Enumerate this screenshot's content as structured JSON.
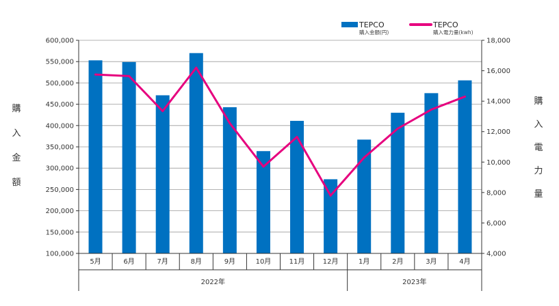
{
  "chart_data": {
    "type": "bar+line",
    "categories": [
      "5月",
      "6月",
      "7月",
      "8月",
      "9月",
      "10月",
      "11月",
      "12月",
      "1月",
      "2月",
      "3月",
      "4月"
    ],
    "year_groups": [
      {
        "label": "2022年",
        "count": 8
      },
      {
        "label": "2023年",
        "count": 4
      }
    ],
    "series": [
      {
        "name": "TEPCO",
        "sublabel": "購入金額(円)",
        "kind": "bar",
        "axis": "left",
        "values": [
          553000,
          549000,
          471000,
          570000,
          443000,
          340000,
          411000,
          274000,
          367000,
          430000,
          476000,
          506000
        ]
      },
      {
        "name": "TEPCO",
        "sublabel": "購入電力量(kwh)",
        "kind": "line",
        "axis": "right",
        "values": [
          15750,
          15650,
          13350,
          16200,
          12550,
          9700,
          11650,
          7800,
          10300,
          12200,
          13450,
          14300
        ]
      }
    ],
    "left_axis": {
      "label": "購入金額",
      "min": 100000,
      "max": 600000,
      "step": 50000,
      "tick_labels": [
        "100,000",
        "150,000",
        "200,000",
        "250,000",
        "300,000",
        "350,000",
        "400,000",
        "450,000",
        "500,000",
        "550,000",
        "600,000"
      ]
    },
    "right_axis": {
      "label": "購入電力量",
      "min": 4000,
      "max": 18000,
      "step": 2000,
      "tick_labels": [
        "4,000",
        "6,000",
        "8,000",
        "10,000",
        "12,000",
        "14,000",
        "16,000",
        "18,000"
      ]
    },
    "colors": {
      "bar": "#0071c1",
      "line": "#e6007e",
      "grid": "#9a9a9a",
      "axis": "#333333"
    },
    "grid": true,
    "legend_position": "top-right"
  }
}
